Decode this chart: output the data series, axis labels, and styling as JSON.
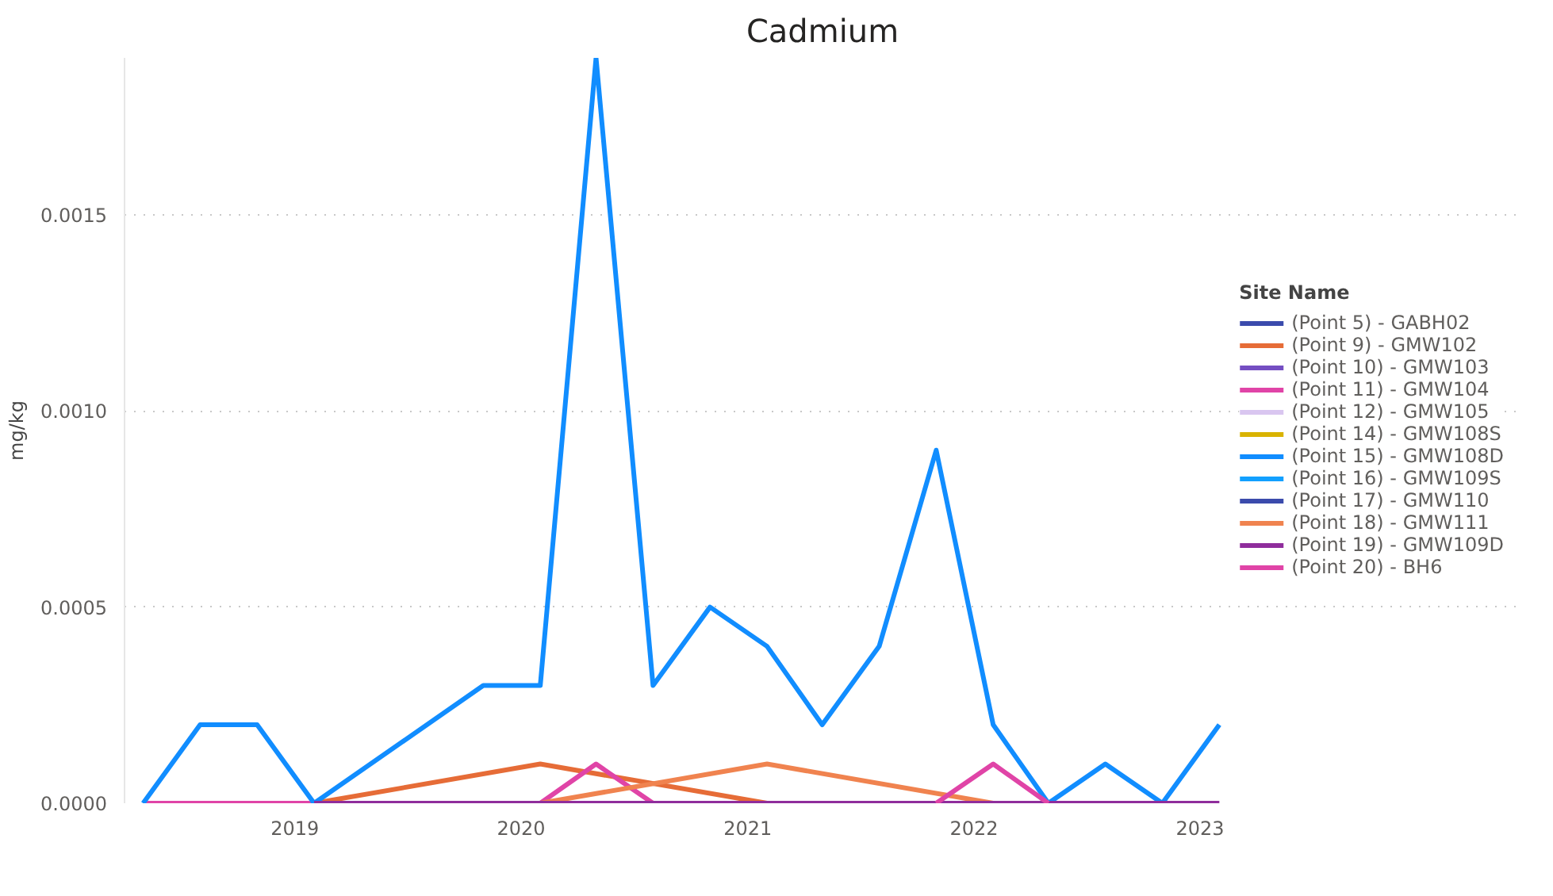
{
  "chart_data": {
    "type": "line",
    "title": "Cadmium",
    "ylabel": "mg/kg",
    "legend_title": "Site Name",
    "x": [
      "2018-05",
      "2018-08",
      "2018-11",
      "2019-02",
      "2019-11",
      "2020-02",
      "2020-05",
      "2020-08",
      "2020-11",
      "2021-02",
      "2021-05",
      "2021-08",
      "2021-11",
      "2022-02",
      "2022-05",
      "2022-08",
      "2022-11",
      "2023-02"
    ],
    "series": [
      {
        "name": "(Point 5) - GABH02",
        "color": "#3b4bac",
        "values": [
          null,
          null,
          null,
          null,
          null,
          null,
          null,
          null,
          null,
          null,
          null,
          null,
          null,
          null,
          null,
          null,
          null,
          null
        ]
      },
      {
        "name": "(Point 9) - GMW102",
        "color": "#e66c37",
        "values": [
          null,
          null,
          null,
          0,
          null,
          0.0001,
          null,
          null,
          null,
          0,
          null,
          null,
          null,
          null,
          null,
          null,
          null,
          null
        ]
      },
      {
        "name": "(Point 10) - GMW103",
        "color": "#744ec2",
        "values": [
          null,
          null,
          null,
          null,
          null,
          null,
          null,
          null,
          null,
          null,
          null,
          null,
          null,
          null,
          null,
          null,
          null,
          null
        ]
      },
      {
        "name": "(Point 11) - GMW104",
        "color": "#e044a7",
        "values": [
          0,
          0,
          0,
          0,
          null,
          0,
          0.0001,
          0,
          null,
          null,
          null,
          null,
          null,
          null,
          null,
          null,
          null,
          null
        ]
      },
      {
        "name": "(Point 12) - GMW105",
        "color": "#d9c6f0",
        "values": [
          null,
          null,
          null,
          null,
          null,
          null,
          null,
          null,
          null,
          null,
          null,
          null,
          null,
          null,
          null,
          null,
          null,
          null
        ]
      },
      {
        "name": "(Point 14) - GMW108S",
        "color": "#d9b300",
        "values": [
          null,
          null,
          null,
          null,
          null,
          null,
          null,
          null,
          null,
          null,
          null,
          null,
          null,
          null,
          null,
          null,
          null,
          null
        ]
      },
      {
        "name": "(Point 15) - GMW108D",
        "color": "#118dff",
        "values": [
          0,
          0.0002,
          0.0002,
          0,
          0.0003,
          0.0003,
          0.0019,
          0.0003,
          0.0005,
          0.0004,
          0.0002,
          0.0004,
          0.0009,
          0.0002,
          0,
          0.0001,
          0,
          0.0002
        ]
      },
      {
        "name": "(Point 16) - GMW109S",
        "color": "#12a0ff",
        "values": [
          null,
          null,
          null,
          null,
          null,
          null,
          null,
          null,
          null,
          null,
          null,
          null,
          null,
          null,
          null,
          null,
          null,
          null
        ]
      },
      {
        "name": "(Point 17) - GMW110",
        "color": "#3b4bac",
        "values": [
          null,
          null,
          null,
          null,
          null,
          null,
          null,
          null,
          null,
          null,
          null,
          null,
          null,
          null,
          null,
          null,
          null,
          null
        ]
      },
      {
        "name": "(Point 18) - GMW111",
        "color": "#f0834f",
        "values": [
          null,
          null,
          null,
          null,
          null,
          0,
          null,
          null,
          null,
          0.0001,
          null,
          null,
          null,
          0,
          null,
          null,
          null,
          null
        ]
      },
      {
        "name": "(Point 19) - GMW109D",
        "color": "#8f2d9c",
        "values": [
          null,
          null,
          null,
          0,
          null,
          0,
          null,
          0,
          null,
          0,
          null,
          0,
          null,
          0,
          0,
          0,
          0,
          0
        ]
      },
      {
        "name": "(Point 20) - BH6",
        "color": "#e044a7",
        "values": [
          null,
          null,
          null,
          null,
          null,
          null,
          null,
          null,
          null,
          null,
          null,
          null,
          0,
          0.0001,
          0,
          null,
          null,
          null
        ]
      }
    ],
    "xlim": [
      "2018-04-01",
      "2024-06-01"
    ],
    "xticks": [
      {
        "value": "2019",
        "label": "2019"
      },
      {
        "value": "2020",
        "label": "2020"
      },
      {
        "value": "2021",
        "label": "2021"
      },
      {
        "value": "2022",
        "label": "2022"
      },
      {
        "value": "2023",
        "label": "2023"
      }
    ],
    "ylim": [
      0,
      0.0019
    ],
    "yticks": [
      {
        "value": 0,
        "label": "0.0000"
      },
      {
        "value": 0.0005,
        "label": "0.0005"
      },
      {
        "value": 0.001,
        "label": "0.0010"
      },
      {
        "value": 0.0015,
        "label": "0.0015"
      }
    ],
    "grid": "y",
    "legend": "right",
    "marker": "none",
    "line_style": "solid"
  }
}
